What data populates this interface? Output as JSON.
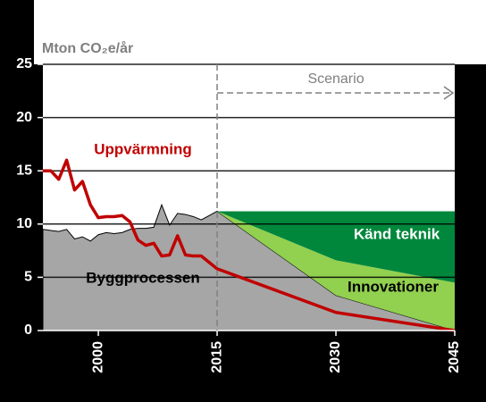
{
  "chart_data": {
    "type": "stacked-area-line",
    "y_label": "Mton CO₂e/år",
    "annotation": "Scenario",
    "scenario_start": 2015,
    "xlim": [
      1993,
      2045
    ],
    "xticks": [
      2000,
      2015,
      2030,
      2045
    ],
    "ylim": [
      0,
      25
    ],
    "yticks": [
      0,
      5,
      10,
      15,
      20,
      25
    ],
    "grid": true,
    "series": [
      {
        "name": "Byggprocessen",
        "kind": "area",
        "color": "#a6a6a6",
        "x": [
          1993,
          1994,
          1995,
          1996,
          1997,
          1998,
          1999,
          2000,
          2001,
          2002,
          2003,
          2004,
          2005,
          2006,
          2007,
          2008,
          2009,
          2010,
          2011,
          2012,
          2013,
          2014,
          2015,
          2030,
          2045
        ],
        "values": [
          9.5,
          9.4,
          9.3,
          9.5,
          8.6,
          8.8,
          8.4,
          9.0,
          9.2,
          9.1,
          9.2,
          9.5,
          9.6,
          9.6,
          9.7,
          11.8,
          9.9,
          11.0,
          10.9,
          10.7,
          10.4,
          10.8,
          11.2,
          3.3,
          0
        ]
      },
      {
        "name": "Innovationer",
        "kind": "area",
        "color": "#92d050",
        "x": [
          2015,
          2030,
          2045
        ],
        "values": [
          0,
          3.3,
          4.5
        ]
      },
      {
        "name": "Känd teknik",
        "kind": "area",
        "color": "#00873c",
        "x": [
          2015,
          2030,
          2045
        ],
        "values": [
          0,
          4.6,
          6.7
        ]
      },
      {
        "name": "Uppvärmning",
        "kind": "line",
        "color": "#c00000",
        "x": [
          1993,
          1994,
          1995,
          1996,
          1997,
          1998,
          1999,
          2000,
          2001,
          2002,
          2003,
          2004,
          2005,
          2006,
          2007,
          2008,
          2009,
          2010,
          2011,
          2012,
          2013,
          2014,
          2015,
          2030,
          2045
        ],
        "values": [
          15.0,
          15.0,
          14.2,
          16.0,
          13.2,
          14.0,
          11.8,
          10.6,
          10.7,
          10.7,
          10.8,
          10.2,
          8.5,
          8.0,
          8.2,
          7.0,
          7.1,
          8.9,
          7.1,
          7.0,
          7.0,
          6.4,
          5.8,
          1.7,
          0
        ]
      }
    ]
  }
}
